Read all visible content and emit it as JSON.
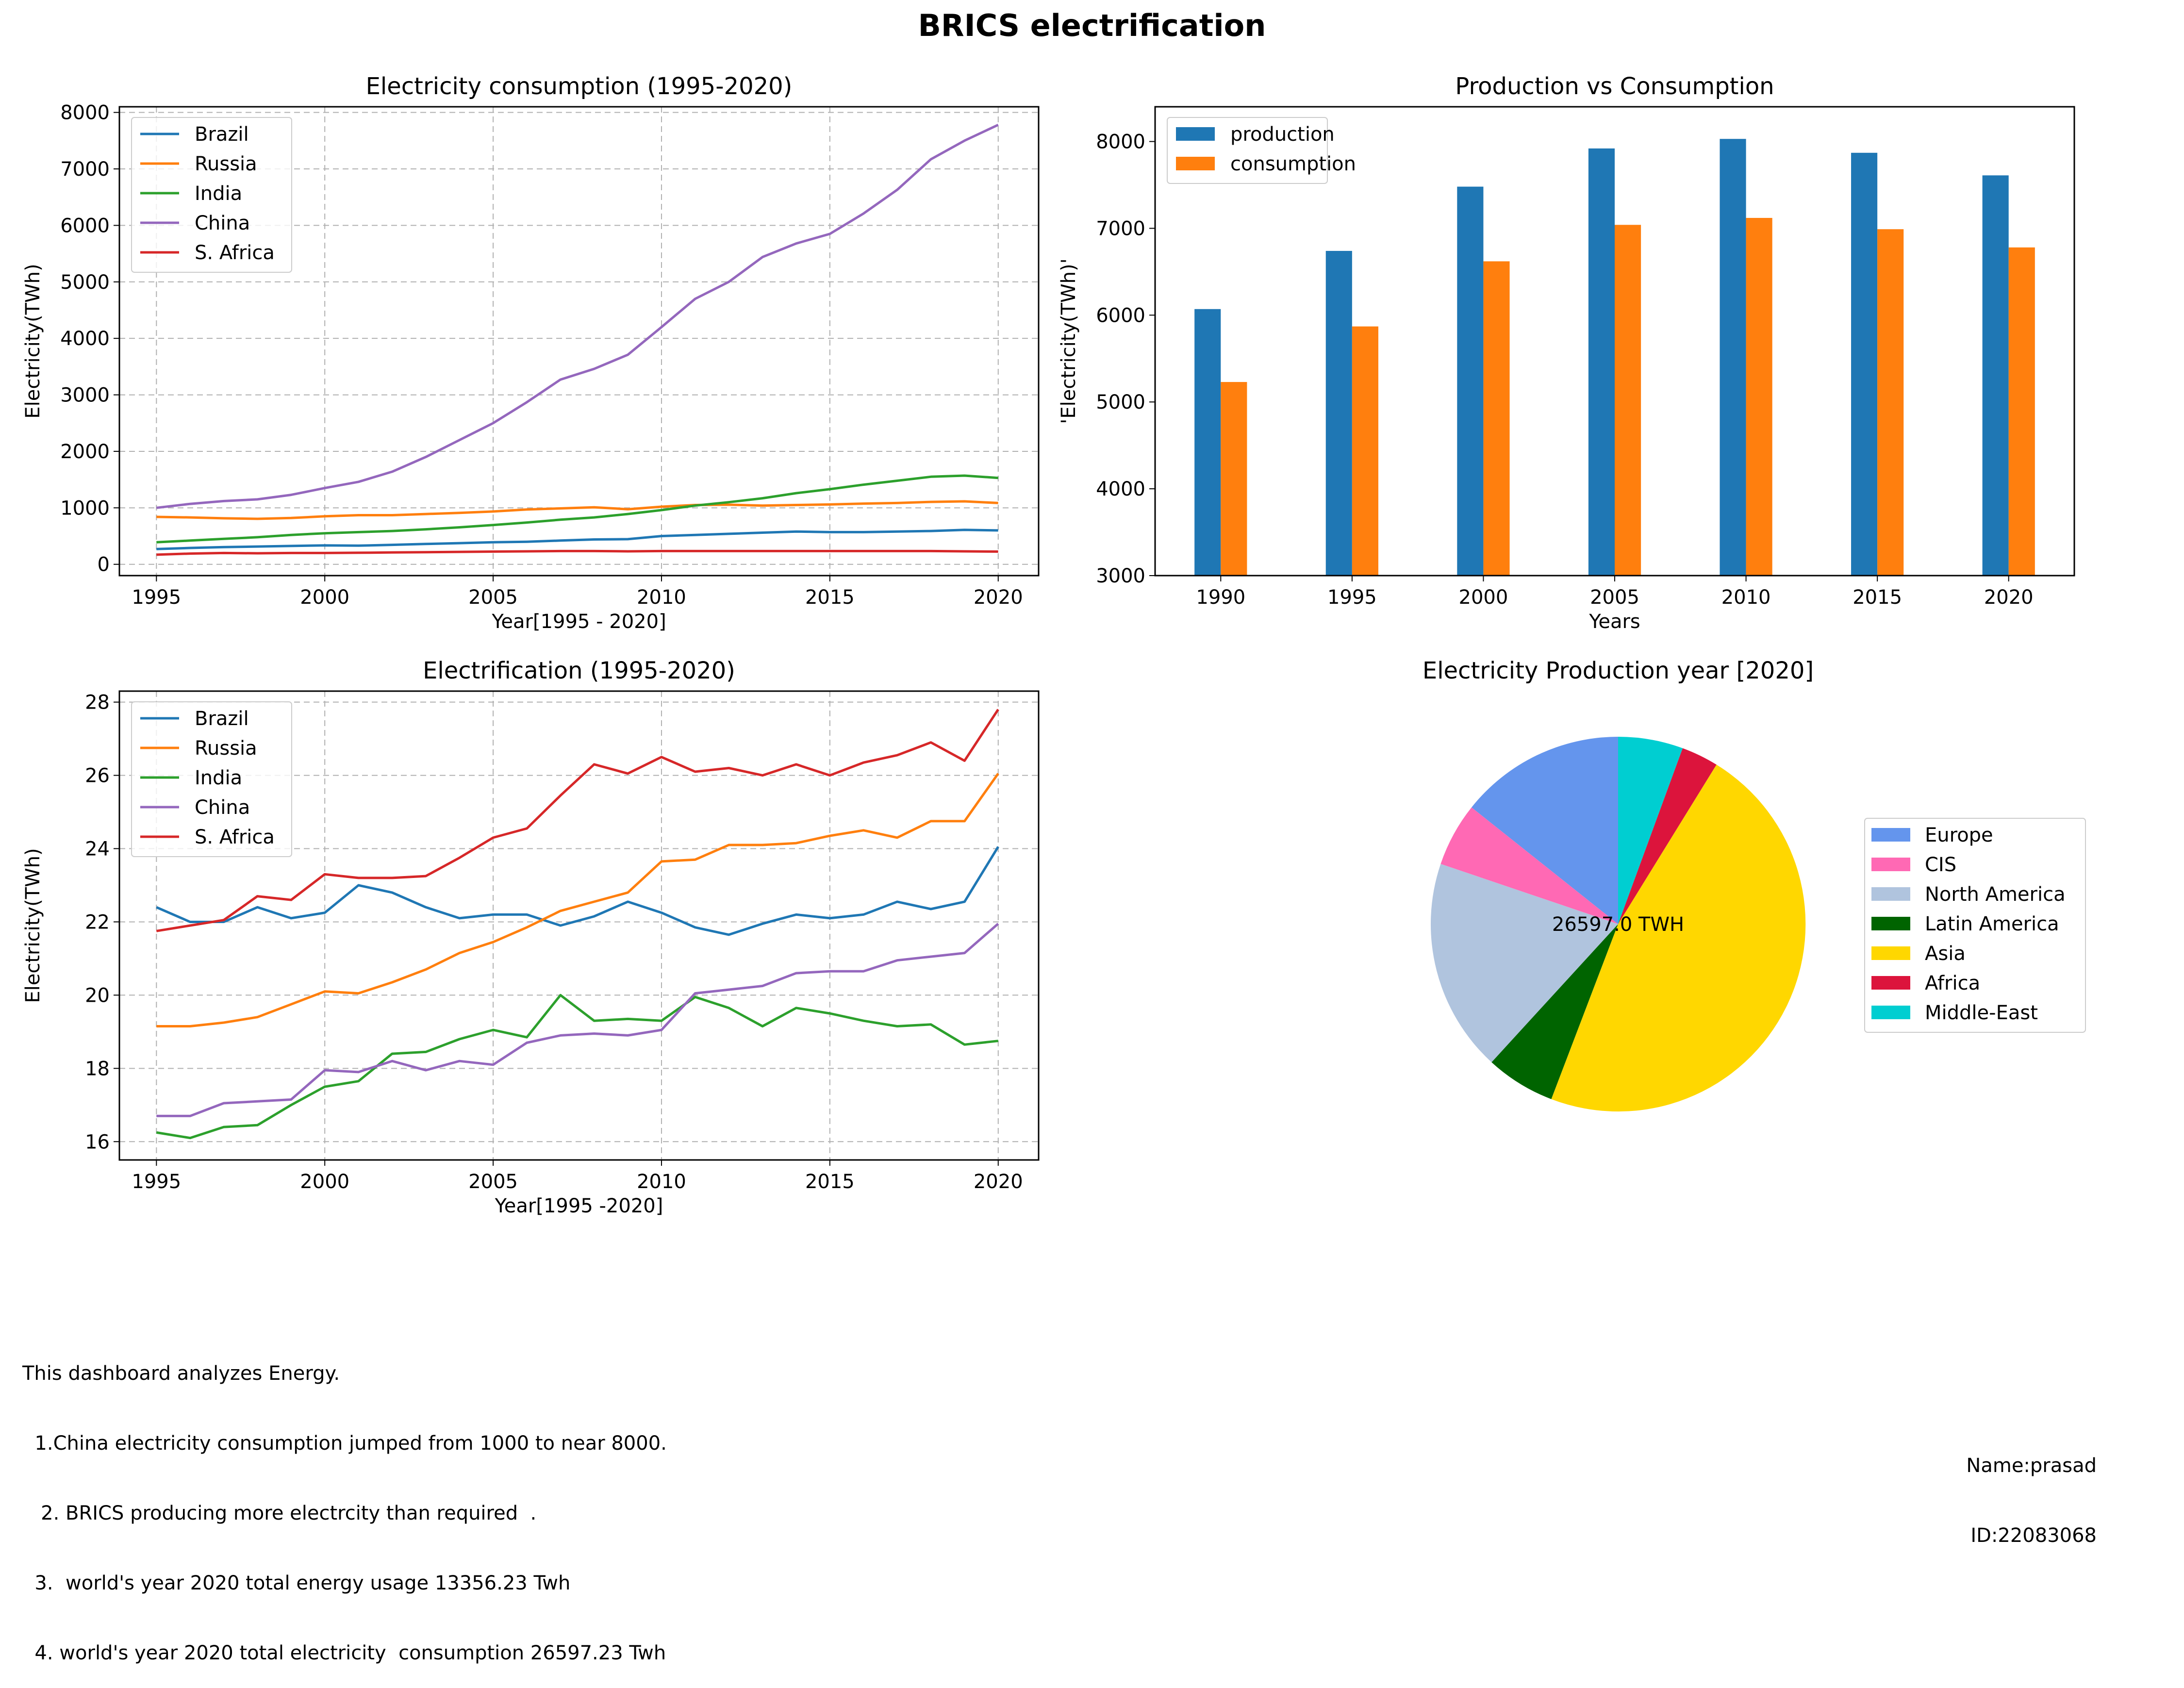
{
  "title": "BRICS electrification",
  "chart_data": [
    {
      "type": "line",
      "title": "Electricity consumption (1995-2020)",
      "xlabel": "Year[1995 - 2020]",
      "ylabel": "Electricity(TWh)",
      "xlim": [
        1993.9,
        2021.2
      ],
      "ylim": [
        -200,
        8100
      ],
      "xticks": [
        1995,
        2000,
        2005,
        2010,
        2015,
        2020
      ],
      "yticks": [
        0,
        1000,
        2000,
        3000,
        4000,
        5000,
        6000,
        7000,
        8000
      ],
      "grid": true,
      "legend": "upper-left",
      "x": [
        1995,
        1996,
        1997,
        1998,
        1999,
        2000,
        2001,
        2002,
        2003,
        2004,
        2005,
        2006,
        2007,
        2008,
        2009,
        2010,
        2011,
        2012,
        2013,
        2014,
        2015,
        2016,
        2017,
        2018,
        2019,
        2020
      ],
      "series": [
        {
          "name": "Brazil",
          "color": "#1f77b4",
          "values": [
            270,
            290,
            305,
            315,
            325,
            335,
            330,
            345,
            360,
            375,
            390,
            400,
            420,
            440,
            445,
            500,
            520,
            540,
            560,
            580,
            570,
            570,
            580,
            590,
            610,
            600
          ]
        },
        {
          "name": "Russia",
          "color": "#ff7f0e",
          "values": [
            840,
            830,
            815,
            805,
            820,
            850,
            870,
            870,
            890,
            910,
            935,
            970,
            990,
            1010,
            975,
            1020,
            1050,
            1055,
            1040,
            1050,
            1060,
            1075,
            1085,
            1105,
            1115,
            1085
          ]
        },
        {
          "name": "India",
          "color": "#2ca02c",
          "values": [
            390,
            420,
            450,
            480,
            520,
            550,
            570,
            590,
            620,
            655,
            695,
            740,
            790,
            830,
            890,
            960,
            1040,
            1100,
            1170,
            1260,
            1330,
            1410,
            1480,
            1550,
            1570,
            1530
          ]
        },
        {
          "name": "China",
          "color": "#9467bd",
          "values": [
            1000,
            1070,
            1120,
            1150,
            1230,
            1350,
            1460,
            1640,
            1900,
            2200,
            2500,
            2870,
            3270,
            3460,
            3710,
            4200,
            4700,
            5000,
            5440,
            5680,
            5850,
            6210,
            6630,
            7170,
            7500,
            7780
          ]
        },
        {
          "name": "S. Africa",
          "color": "#d62728",
          "values": [
            170,
            190,
            200,
            195,
            200,
            200,
            205,
            210,
            215,
            220,
            225,
            230,
            235,
            235,
            230,
            235,
            235,
            235,
            235,
            235,
            235,
            235,
            235,
            235,
            230,
            225
          ]
        }
      ]
    },
    {
      "type": "bar",
      "title": "Production vs Consumption",
      "xlabel": "Years",
      "ylabel": "'Electricity(TWh)'",
      "categories": [
        "1990",
        "1995",
        "2000",
        "2005",
        "2010",
        "2015",
        "2020"
      ],
      "ylim": [
        3000,
        8400
      ],
      "yticks": [
        3000,
        4000,
        5000,
        6000,
        7000,
        8000
      ],
      "grid": false,
      "legend": "upper-left",
      "series": [
        {
          "name": "production",
          "color": "#1f77b4",
          "values": [
            6070,
            6740,
            7480,
            7920,
            8030,
            7870,
            7610
          ]
        },
        {
          "name": "consumption",
          "color": "#ff7f0e",
          "values": [
            5230,
            5870,
            6620,
            7040,
            7120,
            6990,
            6780
          ]
        }
      ]
    },
    {
      "type": "line",
      "title": "Electrification (1995-2020)",
      "xlabel": "Year[1995 -2020]",
      "ylabel": "Electricity(TWh)",
      "xlim": [
        1993.9,
        2021.2
      ],
      "ylim": [
        15.5,
        28.3
      ],
      "xticks": [
        1995,
        2000,
        2005,
        2010,
        2015,
        2020
      ],
      "yticks": [
        16,
        18,
        20,
        22,
        24,
        26,
        28
      ],
      "grid": true,
      "legend": "upper-left",
      "x": [
        1995,
        1996,
        1997,
        1998,
        1999,
        2000,
        2001,
        2002,
        2003,
        2004,
        2005,
        2006,
        2007,
        2008,
        2009,
        2010,
        2011,
        2012,
        2013,
        2014,
        2015,
        2016,
        2017,
        2018,
        2019,
        2020
      ],
      "series": [
        {
          "name": "Brazil",
          "color": "#1f77b4",
          "values": [
            22.4,
            22.0,
            22.0,
            22.4,
            22.1,
            22.25,
            23.0,
            22.8,
            22.4,
            22.1,
            22.2,
            22.2,
            21.9,
            22.15,
            22.55,
            22.25,
            21.85,
            21.65,
            21.95,
            22.2,
            22.1,
            22.2,
            22.55,
            22.35,
            22.55,
            24.05
          ]
        },
        {
          "name": "Russia",
          "color": "#ff7f0e",
          "values": [
            19.15,
            19.15,
            19.25,
            19.4,
            19.75,
            20.1,
            20.05,
            20.35,
            20.7,
            21.15,
            21.45,
            21.85,
            22.3,
            22.55,
            22.8,
            23.65,
            23.7,
            24.1,
            24.1,
            24.15,
            24.35,
            24.5,
            24.3,
            24.75,
            24.75,
            26.05
          ]
        },
        {
          "name": "India",
          "color": "#2ca02c",
          "values": [
            16.25,
            16.1,
            16.4,
            16.45,
            17.0,
            17.5,
            17.65,
            18.4,
            18.45,
            18.8,
            19.05,
            18.85,
            20.0,
            19.3,
            19.35,
            19.3,
            19.95,
            19.65,
            19.15,
            19.65,
            19.5,
            19.3,
            19.15,
            19.2,
            18.65,
            18.75
          ]
        },
        {
          "name": "China",
          "color": "#9467bd",
          "values": [
            16.7,
            16.7,
            17.05,
            17.1,
            17.15,
            17.95,
            17.9,
            18.2,
            17.95,
            18.2,
            18.1,
            18.7,
            18.9,
            18.95,
            18.9,
            19.05,
            20.05,
            20.15,
            20.25,
            20.6,
            20.65,
            20.65,
            20.95,
            21.05,
            21.15,
            21.95
          ]
        },
        {
          "name": "S. Africa",
          "color": "#d62728",
          "values": [
            21.75,
            21.9,
            22.05,
            22.7,
            22.6,
            23.3,
            23.2,
            23.2,
            23.25,
            23.75,
            24.3,
            24.55,
            25.45,
            26.3,
            26.05,
            26.5,
            26.1,
            26.2,
            26.0,
            26.3,
            26.0,
            26.35,
            26.55,
            26.9,
            26.4,
            27.8
          ]
        }
      ]
    },
    {
      "type": "pie",
      "title": "Electricity Production year [2020]",
      "center_label": "26597.0 TWH",
      "legend": "right",
      "slices": [
        {
          "name": "Europe",
          "color": "#6495ed",
          "value": 14.3
        },
        {
          "name": "CIS",
          "color": "#ff69b4",
          "value": 5.5
        },
        {
          "name": "North America",
          "color": "#b0c4de",
          "value": 18.4
        },
        {
          "name": "Latin America",
          "color": "#006400",
          "value": 6.0
        },
        {
          "name": "Asia",
          "color": "#ffd700",
          "value": 47.0
        },
        {
          "name": "Africa",
          "color": "#dc143c",
          "value": 3.2
        },
        {
          "name": "Middle-East",
          "color": "#00ced1",
          "value": 5.6
        }
      ]
    }
  ],
  "notes": [
    "This dashboard analyzes Energy.",
    "  1.China electricity consumption jumped from 1000 to near 8000.",
    "   2. BRICS producing more electrcity than required  .",
    "  3.  world's year 2020 total energy usage 13356.23 Twh",
    "  4. world's year 2020 total electricity  consumption 26597.23 Twh"
  ],
  "author": {
    "name": "Name:prasad",
    "id": "ID:22083068"
  }
}
